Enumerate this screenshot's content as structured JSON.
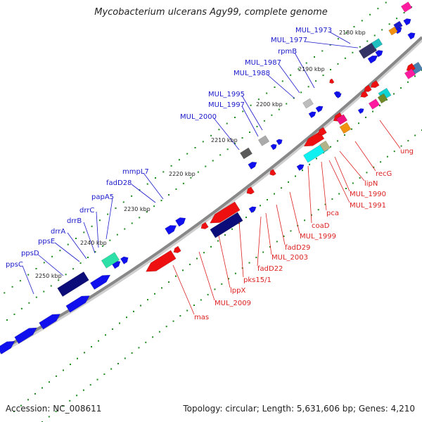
{
  "title": "Mycobacterium ulcerans Agy99, complete genome",
  "footer": {
    "accession": "Accession: NC_008611",
    "summary": "Topology: circular; Length: 5,631,606 bp; Genes: 4,210"
  },
  "colors": {
    "forward_label": "#1a1acc",
    "reverse_label": "#dd2222",
    "backbone": "#888888",
    "dots": "#1f8a1f"
  },
  "ticks": [
    "2180 kbp",
    "2190 kbp",
    "2200 kbp",
    "2210 kbp",
    "2220 kbp",
    "2230 kbp",
    "2240 kbp",
    "2250 kbp"
  ],
  "forward_labels": [
    "MUL_1973",
    "MUL_1977",
    "rpmB",
    "MUL_1987",
    "MUL_1988",
    "MUL_1995",
    "MUL_1997",
    "MUL_2000",
    "mmpL7",
    "fadD28",
    "papA5",
    "drrC",
    "drrB",
    "drrA",
    "ppsE",
    "ppsD",
    "ppsC"
  ],
  "reverse_labels": [
    "ung",
    "recG",
    "lipN",
    "MUL_1990",
    "MUL_1991",
    "pca",
    "coaD",
    "MUL_1999",
    "fadD29",
    "MUL_2003",
    "fadD22",
    "pks15/1",
    "lppX",
    "MUL_2009",
    "mas"
  ]
}
